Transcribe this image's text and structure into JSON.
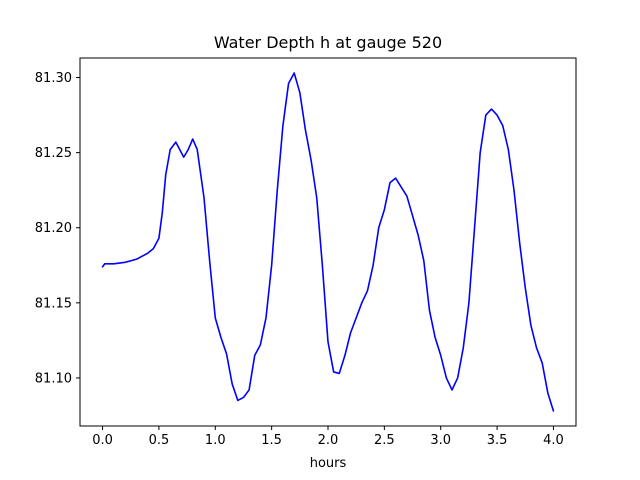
{
  "chart_data": {
    "type": "line",
    "title": "Water Depth h at gauge 520",
    "xlabel": "hours",
    "ylabel": "",
    "xlim": [
      -0.2,
      4.2
    ],
    "ylim": [
      81.068,
      81.313
    ],
    "xticks": [
      0.0,
      0.5,
      1.0,
      1.5,
      2.0,
      2.5,
      3.0,
      3.5,
      4.0
    ],
    "xtick_labels": [
      "0.0",
      "0.5",
      "1.0",
      "1.5",
      "2.0",
      "2.5",
      "3.0",
      "3.5",
      "4.0"
    ],
    "yticks": [
      81.1,
      81.15,
      81.2,
      81.25,
      81.3
    ],
    "ytick_labels": [
      "81.10",
      "81.15",
      "81.20",
      "81.25",
      "81.30"
    ],
    "grid": false,
    "legend": "none",
    "color": "#0000ff",
    "series": [
      {
        "x": [
          0.0,
          0.02,
          0.1,
          0.2,
          0.3,
          0.4,
          0.45,
          0.5,
          0.53,
          0.56,
          0.6,
          0.65,
          0.72,
          0.76,
          0.8,
          0.84,
          0.9,
          0.95,
          1.0,
          1.05,
          1.1,
          1.15,
          1.2,
          1.25,
          1.3,
          1.35,
          1.4,
          1.45,
          1.5,
          1.55,
          1.6,
          1.65,
          1.7,
          1.75,
          1.8,
          1.85,
          1.9,
          1.95,
          2.0,
          2.05,
          2.1,
          2.15,
          2.2,
          2.25,
          2.3,
          2.35,
          2.4,
          2.45,
          2.5,
          2.55,
          2.6,
          2.65,
          2.7,
          2.75,
          2.8,
          2.85,
          2.9,
          2.95,
          3.0,
          3.05,
          3.1,
          3.15,
          3.2,
          3.25,
          3.3,
          3.35,
          3.4,
          3.45,
          3.5,
          3.55,
          3.6,
          3.65,
          3.7,
          3.75,
          3.8,
          3.85,
          3.9,
          3.95,
          4.0
        ],
        "values": [
          81.174,
          81.176,
          81.176,
          81.177,
          81.179,
          81.183,
          81.186,
          81.193,
          81.21,
          81.235,
          81.252,
          81.257,
          81.247,
          81.252,
          81.259,
          81.252,
          81.22,
          81.178,
          81.14,
          81.127,
          81.116,
          81.096,
          81.085,
          81.087,
          81.092,
          81.115,
          81.122,
          81.14,
          81.175,
          81.225,
          81.268,
          81.296,
          81.303,
          81.29,
          81.265,
          81.245,
          81.22,
          81.175,
          81.124,
          81.104,
          81.103,
          81.115,
          81.13,
          81.14,
          81.15,
          81.158,
          81.175,
          81.2,
          81.212,
          81.23,
          81.233,
          81.227,
          81.221,
          81.208,
          81.195,
          81.178,
          81.145,
          81.127,
          81.115,
          81.1,
          81.092,
          81.1,
          81.12,
          81.15,
          81.2,
          81.25,
          81.275,
          81.279,
          81.275,
          81.268,
          81.252,
          81.225,
          81.19,
          81.16,
          81.135,
          81.12,
          81.11,
          81.09,
          81.078
        ]
      }
    ]
  }
}
